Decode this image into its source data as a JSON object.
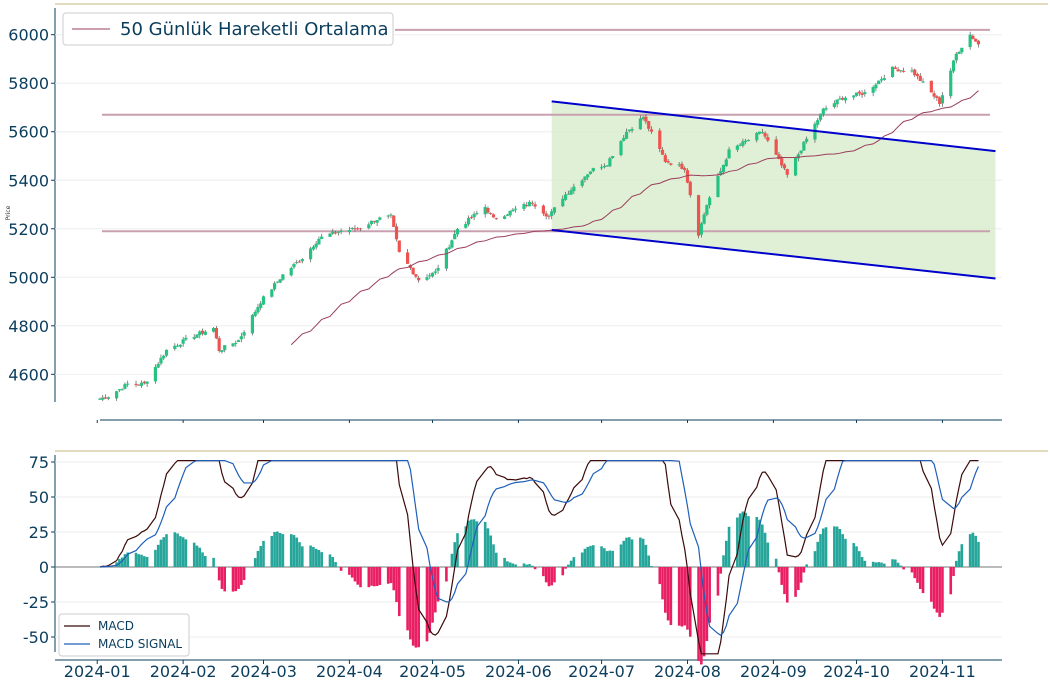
{
  "chart_data": [
    {
      "type": "candlestick",
      "ylabel": "Price",
      "ylim": [
        4490,
        6040
      ],
      "yticks": [
        4600,
        4800,
        5000,
        5200,
        5400,
        5600,
        5800,
        6000
      ],
      "legend": {
        "label": "50 Günlük Hareketli Ortalama",
        "position": "top-left"
      },
      "colors": {
        "up": "#26c281",
        "down": "#ef5350",
        "ma": "#9b3d5c",
        "channel": "#0000cc",
        "channel_fill": "#d6ebc8",
        "levels": "#c9a0b0"
      },
      "horizontal_levels": [
        5190,
        5670,
        6020
      ],
      "channel": {
        "upper": [
          [
            "2024-06-13",
            5725
          ],
          [
            "2024-11-14",
            5520
          ]
        ],
        "lower": [
          [
            "2024-06-13",
            5195
          ],
          [
            "2024-11-14",
            4995
          ]
        ]
      },
      "close_anchors": [
        [
          "2024-01-02",
          4500
        ],
        [
          "2024-01-05",
          4510
        ],
        [
          "2024-01-12",
          4560
        ],
        [
          "2024-01-18",
          4560
        ],
        [
          "2024-01-26",
          4700
        ],
        [
          "2024-02-05",
          4760
        ],
        [
          "2024-02-12",
          4790
        ],
        [
          "2024-02-14",
          4700
        ],
        [
          "2024-02-21",
          4740
        ],
        [
          "2024-02-29",
          4900
        ],
        [
          "2024-03-08",
          5010
        ],
        [
          "2024-03-15",
          5080
        ],
        [
          "2024-03-21",
          5160
        ],
        [
          "2024-03-28",
          5190
        ],
        [
          "2024-04-04",
          5200
        ],
        [
          "2024-04-11",
          5240
        ],
        [
          "2024-04-16",
          5250
        ],
        [
          "2024-04-19",
          5100
        ],
        [
          "2024-04-26",
          4990
        ],
        [
          "2024-05-02",
          5020
        ],
        [
          "2024-05-10",
          5200
        ],
        [
          "2024-05-20",
          5290
        ],
        [
          "2024-05-23",
          5240
        ],
        [
          "2024-06-06",
          5310
        ],
        [
          "2024-06-12",
          5250
        ],
        [
          "2024-06-17",
          5330
        ],
        [
          "2024-06-27",
          5440
        ],
        [
          "2024-07-03",
          5470
        ],
        [
          "2024-07-10",
          5600
        ],
        [
          "2024-07-16",
          5660
        ],
        [
          "2024-07-24",
          5480
        ],
        [
          "2024-07-31",
          5450
        ],
        [
          "2024-08-05",
          5180
        ],
        [
          "2024-08-08",
          5300
        ],
        [
          "2024-08-16",
          5520
        ],
        [
          "2024-08-28",
          5600
        ],
        [
          "2024-09-06",
          5420
        ],
        [
          "2024-09-11",
          5530
        ],
        [
          "2024-09-19",
          5690
        ],
        [
          "2024-09-26",
          5740
        ],
        [
          "2024-10-04",
          5760
        ],
        [
          "2024-10-14",
          5860
        ],
        [
          "2024-10-21",
          5850
        ],
        [
          "2024-10-25",
          5800
        ],
        [
          "2024-10-31",
          5720
        ],
        [
          "2024-11-06",
          5920
        ],
        [
          "2024-11-11",
          6000
        ],
        [
          "2024-11-14",
          5960
        ]
      ]
    },
    {
      "type": "line+bar",
      "ylim": [
        -62,
        76
      ],
      "yticks": [
        -50,
        -25,
        0,
        25,
        50,
        75
      ],
      "x_ticks": [
        "2024-01",
        "2024-02",
        "2024-03",
        "2024-04",
        "2024-05",
        "2024-06",
        "2024-07",
        "2024-08",
        "2024-09",
        "2024-10",
        "2024-11"
      ],
      "legend_position": "bottom-left",
      "series": [
        {
          "name": "MACD",
          "color": "#3b0a0a"
        },
        {
          "name": "MACD SIGNAL",
          "color": "#1f5fb8"
        }
      ],
      "histogram_colors": {
        "positive": "#26a69a",
        "negative": "#e91e63"
      }
    }
  ]
}
